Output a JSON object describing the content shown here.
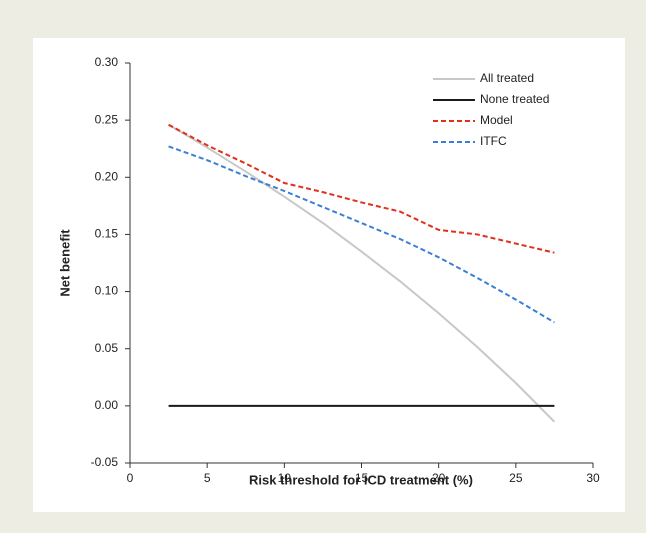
{
  "chart_data": {
    "type": "line",
    "x_label": "Risk threshold for ICD treatment (%)",
    "y_label": "Net benefit",
    "x": [
      2.5,
      5,
      7.5,
      10,
      12.5,
      15,
      17.5,
      20,
      22.5,
      25,
      27.5
    ],
    "series": [
      {
        "name": "All treated",
        "color": "#c8c8c8",
        "style": "solid",
        "values": [
          0.246,
          0.226,
          0.205,
          0.183,
          0.16,
          0.135,
          0.109,
          0.081,
          0.0515,
          0.02,
          -0.014
        ]
      },
      {
        "name": "None treated",
        "color": "#1a1a1a",
        "style": "solid",
        "values": [
          0,
          0,
          0,
          0,
          0,
          0,
          0,
          0,
          0,
          0,
          0
        ]
      },
      {
        "name": "Model",
        "color": "#e0301e",
        "style": "dashed",
        "values": [
          0.246,
          0.228,
          0.212,
          0.195,
          0.187,
          0.178,
          0.17,
          0.154,
          0.15,
          0.142,
          0.134
        ]
      },
      {
        "name": "ITFC",
        "color": "#3a7fd5",
        "style": "dashed",
        "values": [
          0.227,
          0.215,
          0.201,
          0.188,
          0.174,
          0.16,
          0.146,
          0.13,
          0.112,
          0.093,
          0.073
        ]
      }
    ],
    "xlim": [
      0,
      30
    ],
    "xticks": [
      0,
      5,
      10,
      15,
      20,
      25,
      30
    ],
    "ylim": [
      -0.05,
      0.3
    ],
    "yticks": [
      {
        "value": 0.3,
        "label": "0.30"
      },
      0.25,
      {
        "value": 0.2,
        "label": "0.20"
      },
      0.15,
      {
        "value": 0.1,
        "label": "0.10"
      },
      0.05,
      {
        "value": 0,
        "label": "0.00"
      },
      -0.05
    ],
    "legend": "top-right"
  }
}
